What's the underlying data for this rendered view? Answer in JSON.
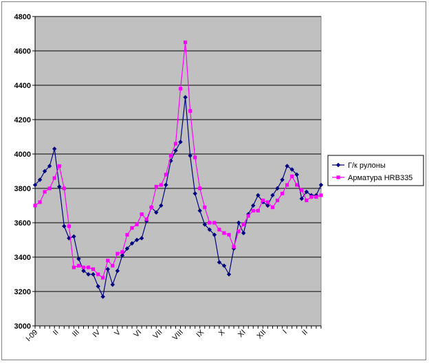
{
  "chart_data": {
    "type": "line",
    "title": "",
    "xlabel": "",
    "ylabel": "",
    "ylim": [
      3000,
      4800
    ],
    "y_ticks": [
      3000,
      3200,
      3400,
      3600,
      3800,
      4000,
      4200,
      4400,
      4600,
      4800
    ],
    "x_tick_labels": [
      "I-09",
      "II",
      "III",
      "IV",
      "V",
      "VI",
      "VII",
      "VIII",
      "IX",
      "X",
      "XI",
      "XII",
      "I",
      "II"
    ],
    "x_tick_positions": [
      0,
      4.3,
      8.6,
      12.9,
      17.1,
      21.4,
      25.7,
      30,
      34.3,
      38.6,
      42.9,
      47.1,
      51.4,
      55.7
    ],
    "grid": true,
    "legend_position": "right",
    "plot_background": "#c0c0c0",
    "series": [
      {
        "name": "Г/к рулоны",
        "color": "#000080",
        "marker": "diamond",
        "values": [
          3820,
          3850,
          3900,
          3930,
          4030,
          3810,
          3580,
          3510,
          3520,
          3390,
          3320,
          3300,
          3300,
          3230,
          3170,
          3330,
          3240,
          3320,
          3410,
          3450,
          3480,
          3500,
          3510,
          3610,
          3690,
          3660,
          3700,
          3820,
          3960,
          4020,
          4070,
          4330,
          3990,
          3770,
          3670,
          3590,
          3560,
          3530,
          3370,
          3350,
          3300,
          3450,
          3600,
          3540,
          3650,
          3700,
          3760,
          3720,
          3700,
          3760,
          3800,
          3850,
          3930,
          3910,
          3880,
          3740,
          3780,
          3760,
          3760,
          3820
        ]
      },
      {
        "name": "Арматура HRB335",
        "color": "#ff00ff",
        "marker": "square",
        "values": [
          3700,
          3720,
          3780,
          3800,
          3860,
          3930,
          3800,
          3580,
          3340,
          3350,
          3340,
          3340,
          3330,
          3300,
          3280,
          3380,
          3350,
          3420,
          3430,
          3530,
          3570,
          3590,
          3650,
          3620,
          3690,
          3810,
          3820,
          3880,
          3990,
          4060,
          4380,
          4650,
          4250,
          3980,
          3800,
          3690,
          3600,
          3600,
          3560,
          3540,
          3530,
          3460,
          3550,
          3590,
          3640,
          3670,
          3670,
          3730,
          3720,
          3690,
          3730,
          3770,
          3820,
          3870,
          3820,
          3790,
          3730,
          3750,
          3750,
          3760
        ]
      }
    ]
  }
}
